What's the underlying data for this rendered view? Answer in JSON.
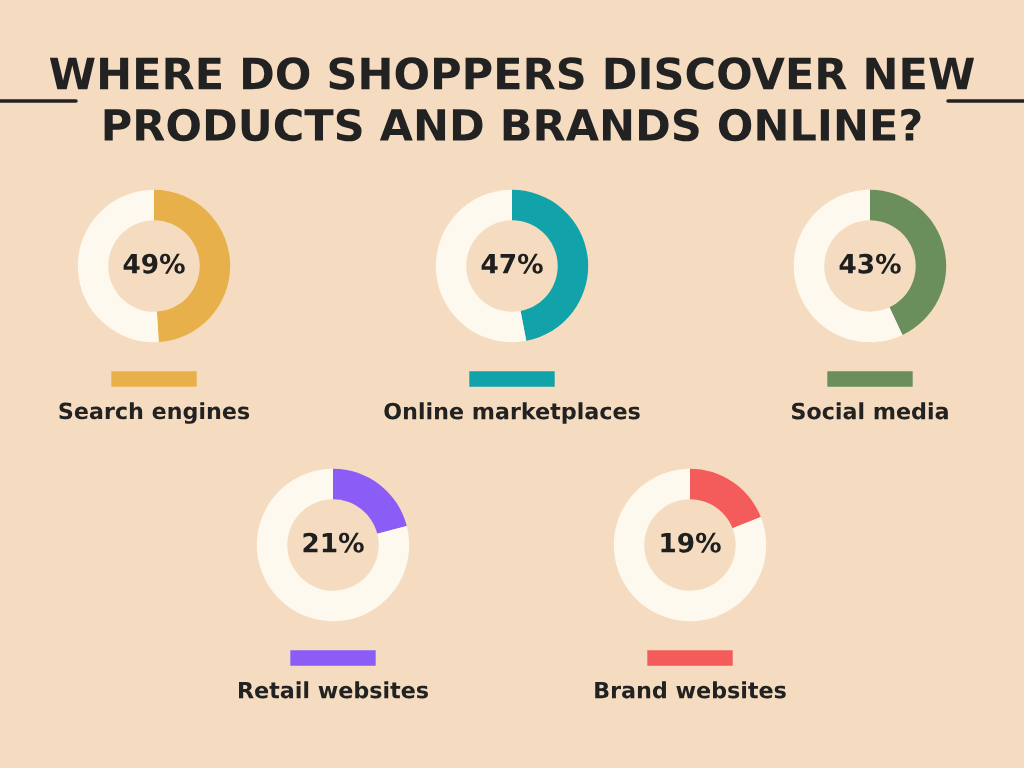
{
  "chart_data": [
    {
      "type": "donut",
      "title": "WHERE DO SHOPPERS DISCOVER NEW\nPRODUCTS AND BRANDS ONLINE?",
      "categories": [
        "Search engines",
        null
      ],
      "values": [
        49,
        51
      ],
      "colors": [
        "#e8b04a",
        "#fdf9ee"
      ],
      "value_labels": [
        "49%",
        null
      ],
      "legend": "bottom"
    },
    {
      "type": "donut",
      "categories": [
        "Online marketplaces",
        null
      ],
      "values": [
        47,
        53
      ],
      "colors": [
        "#12a2aa",
        "#fdf9ee"
      ],
      "value_labels": [
        "47%",
        null
      ],
      "legend": "bottom"
    },
    {
      "type": "donut",
      "categories": [
        "Social media",
        null
      ],
      "values": [
        43,
        57
      ],
      "colors": [
        "#6a8f5c",
        "#fdf9ee"
      ],
      "value_labels": [
        "43%",
        null
      ],
      "legend": "bottom"
    },
    {
      "type": "donut",
      "categories": [
        "Retail websites",
        null
      ],
      "values": [
        21,
        79
      ],
      "colors": [
        "#8b5cf6",
        "#fdf9ee"
      ],
      "value_labels": [
        "21%",
        null
      ],
      "legend": "bottom"
    },
    {
      "type": "donut",
      "categories": [
        "Brand websites",
        null
      ],
      "values": [
        19,
        81
      ],
      "colors": [
        "#f45b5b",
        "#fdf9ee"
      ],
      "value_labels": [
        "19%",
        null
      ],
      "legend": "bottom"
    }
  ]
}
